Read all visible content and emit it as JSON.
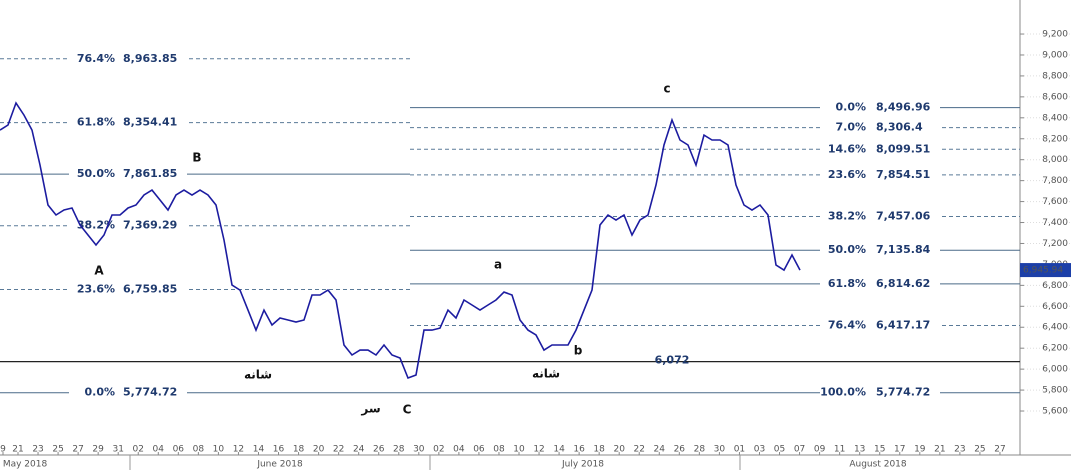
{
  "chart_data": {
    "type": "line",
    "color": "#1c1ca0",
    "values": [
      8283,
      8331,
      8541,
      8426,
      8283,
      7949,
      7567,
      7472,
      7520,
      7539,
      7376,
      7281,
      7185,
      7281,
      7472,
      7472,
      7539,
      7567,
      7663,
      7710,
      7615,
      7520,
      7663,
      7710,
      7663,
      7710,
      7663,
      7567,
      7233,
      6803,
      6755,
      6564,
      6373,
      6564,
      6421,
      6488,
      6469,
      6450,
      6469,
      6708,
      6708,
      6755,
      6660,
      6230,
      6135,
      6182,
      6182,
      6135,
      6230,
      6135,
      6106,
      5915,
      5944,
      6373,
      6373,
      6392,
      6564,
      6488,
      6660,
      6612,
      6564,
      6612,
      6660,
      6736,
      6708,
      6469,
      6373,
      6326,
      6182,
      6230,
      6230,
      6230,
      6373,
      6564,
      6755,
      7376,
      7472,
      7424,
      7472,
      7281,
      7424,
      7472,
      7758,
      8140,
      8379,
      8188,
      8140,
      7949,
      8235,
      8188,
      8188,
      8140,
      7758,
      7567,
      7520,
      7567,
      7472,
      6994,
      6946,
      7090,
      6946
    ],
    "ylim": [
      5180,
      9525
    ],
    "yticks": [
      {
        "value": 5600,
        "label": "5,600"
      },
      {
        "value": 5800,
        "label": "5,800"
      },
      {
        "value": 6000,
        "label": "6,000"
      },
      {
        "value": 6200,
        "label": "6,200"
      },
      {
        "value": 6400,
        "label": "6,400"
      },
      {
        "value": 6600,
        "label": "6,600"
      },
      {
        "value": 6800,
        "label": "6,800"
      },
      {
        "value": 7000,
        "label": "7,000"
      },
      {
        "value": 7200,
        "label": "7,200"
      },
      {
        "value": 7400,
        "label": "7,400"
      },
      {
        "value": 7600,
        "label": "7,600"
      },
      {
        "value": 7800,
        "label": "7,800"
      },
      {
        "value": 8000,
        "label": "8,000"
      },
      {
        "value": 8200,
        "label": "8,200"
      },
      {
        "value": 8400,
        "label": "8,400"
      },
      {
        "value": 8600,
        "label": "8,600"
      },
      {
        "value": 8800,
        "label": "8,800"
      },
      {
        "value": 9000,
        "label": "9,000"
      },
      {
        "value": 9200,
        "label": "9,200"
      }
    ],
    "x_day_labels": [
      "9",
      "21",
      "23",
      "25",
      "27",
      "29",
      "31",
      "02",
      "04",
      "06",
      "08",
      "10",
      "12",
      "14",
      "16",
      "18",
      "20",
      "22",
      "24",
      "26",
      "28",
      "30",
      "02",
      "04",
      "06",
      "08",
      "10",
      "12",
      "14",
      "16",
      "18",
      "20",
      "22",
      "24",
      "26",
      "28",
      "30",
      "01",
      "03",
      "05",
      "07",
      "09",
      "11",
      "13",
      "15",
      "17",
      "19",
      "21",
      "23",
      "25",
      "27"
    ],
    "x_month_labels": [
      "May 2018",
      "June 2018",
      "July 2018",
      "August 2018"
    ],
    "fib_left": [
      {
        "pct": "76.4%",
        "value": 8963.85,
        "label": "8,963.85",
        "style": "dashed"
      },
      {
        "pct": "61.8%",
        "value": 8354.41,
        "label": "8,354.41",
        "style": "dashed"
      },
      {
        "pct": "50.0%",
        "value": 7861.85,
        "label": "7,861.85",
        "style": "solid"
      },
      {
        "pct": "38.2%",
        "value": 7369.29,
        "label": "7,369.29",
        "style": "dashed"
      },
      {
        "pct": "23.6%",
        "value": 6759.85,
        "label": "6,759.85",
        "style": "dashed"
      },
      {
        "pct": "0.0%",
        "value": 5774.72,
        "label": "5,774.72",
        "style": "solid"
      }
    ],
    "fib_right": [
      {
        "pct": "0.0%",
        "value": 8496.96,
        "label": "8,496.96",
        "style": "solid"
      },
      {
        "pct": "7.0%",
        "value": 8306.4,
        "label": "8,306.4",
        "style": "dashed"
      },
      {
        "pct": "14.6%",
        "value": 8099.51,
        "label": "8,099.51",
        "style": "dashed"
      },
      {
        "pct": "23.6%",
        "value": 7854.51,
        "label": "7,854.51",
        "style": "dashed"
      },
      {
        "pct": "38.2%",
        "value": 7457.06,
        "label": "7,457.06",
        "style": "dashed"
      },
      {
        "pct": "50.0%",
        "value": 7135.84,
        "label": "7,135.84",
        "style": "solid"
      },
      {
        "pct": "61.8%",
        "value": 6814.62,
        "label": "6,814.62",
        "style": "solid"
      },
      {
        "pct": "76.4%",
        "value": 6417.17,
        "label": "6,417.17",
        "style": "dashed"
      },
      {
        "pct": "100.0%",
        "value": 5774.72,
        "label": "5,774.72",
        "style": "solid"
      }
    ],
    "hline": {
      "value": 6072,
      "label": "6,072"
    },
    "last_price": {
      "value": 6945.94,
      "label": "6,945.94"
    },
    "annotations": [
      "A",
      "B",
      "C",
      "a",
      "b",
      "c",
      "شانه",
      "شانه",
      "سر"
    ]
  }
}
